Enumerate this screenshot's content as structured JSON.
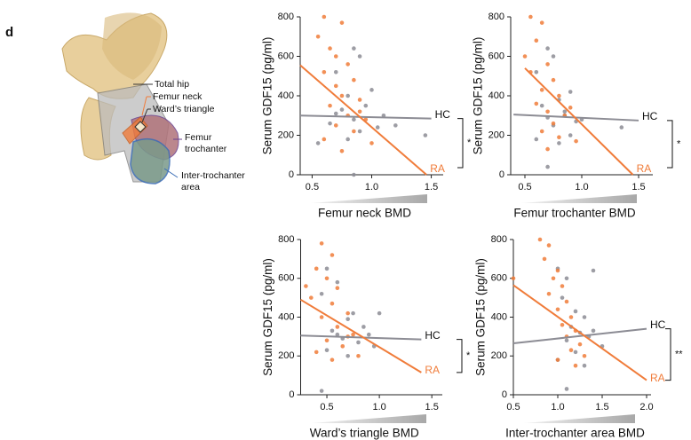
{
  "panel_label": "d",
  "illustration": {
    "total_hip": "Total hip",
    "femur_neck": "Femur neck",
    "wards_triangle": "Ward’s triangle",
    "femur_trochanter": [
      "Femur",
      "trochanter"
    ],
    "inter_trochanter": [
      "Inter-trochanter",
      "area"
    ]
  },
  "chart_data": [
    {
      "type": "scatter",
      "ylabel": "Serum GDF15 (pg/ml)",
      "xlabel": "Femur neck BMD",
      "significance": "*",
      "xlim": [
        0.4,
        1.6
      ],
      "xticks": [
        0.5,
        {
          "value": 1,
          "label": "1.0"
        },
        1.5
      ],
      "ylim": [
        0,
        800
      ],
      "yticks": [
        0,
        200,
        400,
        600,
        800
      ],
      "series": [
        {
          "name": "HC",
          "color": "#8c8c94",
          "x": [
            0.85,
            0.9,
            0.7,
            1.0,
            0.8,
            0.95,
            0.75,
            1.1,
            0.85,
            0.65,
            1.05,
            0.9,
            0.8,
            0.55,
            1.2,
            0.85,
            1.45,
            0.7
          ],
          "values": [
            640,
            600,
            520,
            430,
            400,
            350,
            330,
            300,
            280,
            260,
            240,
            220,
            180,
            160,
            250,
            0,
            200,
            310
          ]
        },
        {
          "name": "RA",
          "color": "#f07c3a",
          "x": [
            0.6,
            0.75,
            0.55,
            0.65,
            0.7,
            0.8,
            0.6,
            0.85,
            0.7,
            0.75,
            0.9,
            0.65,
            0.8,
            0.95,
            0.7,
            0.85,
            0.6,
            1.0,
            0.75,
            0.9
          ],
          "values": [
            800,
            770,
            700,
            640,
            600,
            560,
            520,
            480,
            450,
            400,
            380,
            350,
            300,
            280,
            250,
            220,
            180,
            160,
            120,
            320
          ]
        }
      ],
      "fit_lines": [
        {
          "x": [
            0.4,
            1.5
          ],
          "values": [
            300,
            285
          ]
        },
        {
          "x": [
            0.4,
            1.46
          ],
          "values": [
            555,
            0
          ]
        }
      ]
    },
    {
      "type": "scatter",
      "ylabel": "Serum GDF15 (pg/ml)",
      "xlabel": "Femur trochanter BMD",
      "significance": "*",
      "xlim": [
        0.375,
        1.625
      ],
      "xticks": [
        0.5,
        {
          "value": 1,
          "label": "1.0"
        },
        1.5
      ],
      "ylim": [
        0,
        800
      ],
      "yticks": [
        0,
        200,
        400,
        600,
        800
      ],
      "series": [
        {
          "name": "HC",
          "color": "#8c8c94",
          "x": [
            0.7,
            0.75,
            0.6,
            0.9,
            0.8,
            0.65,
            0.85,
            0.7,
            0.95,
            0.75,
            0.6,
            0.9,
            0.8,
            0.7,
            1.35,
            0.85,
            1.0
          ],
          "values": [
            640,
            600,
            520,
            420,
            380,
            350,
            320,
            290,
            270,
            250,
            180,
            200,
            160,
            40,
            240,
            300,
            280
          ]
        },
        {
          "name": "RA",
          "color": "#f07c3a",
          "x": [
            0.55,
            0.65,
            0.6,
            0.5,
            0.7,
            0.55,
            0.75,
            0.65,
            0.8,
            0.6,
            0.7,
            0.85,
            0.75,
            0.65,
            0.8,
            0.95,
            0.7,
            0.9
          ],
          "values": [
            800,
            770,
            680,
            600,
            560,
            520,
            480,
            430,
            400,
            360,
            320,
            300,
            260,
            220,
            190,
            170,
            130,
            340
          ]
        }
      ],
      "fit_lines": [
        {
          "x": [
            0.4,
            1.5
          ],
          "values": [
            305,
            275
          ]
        },
        {
          "x": [
            0.5,
            1.45
          ],
          "values": [
            540,
            0
          ]
        }
      ]
    },
    {
      "type": "scatter",
      "ylabel": "Serum GDF15 (pg/ml)",
      "xlabel": "Ward’s triangle BMD",
      "significance": "*",
      "xlim": [
        0.25,
        1.6
      ],
      "xticks": [
        0.5,
        {
          "value": 1,
          "label": "1.0"
        },
        1.5
      ],
      "ylim": [
        0,
        800
      ],
      "yticks": [
        0,
        200,
        400,
        600,
        800
      ],
      "series": [
        {
          "name": "HC",
          "color": "#8c8c94",
          "x": [
            0.5,
            0.6,
            0.45,
            0.75,
            0.7,
            0.85,
            0.55,
            0.9,
            0.65,
            0.8,
            0.5,
            0.95,
            0.7,
            0.45,
            1.0,
            0.6
          ],
          "values": [
            650,
            580,
            520,
            420,
            390,
            350,
            330,
            310,
            290,
            270,
            230,
            250,
            200,
            20,
            420,
            310
          ]
        },
        {
          "name": "RA",
          "color": "#f07c3a",
          "x": [
            0.45,
            0.55,
            0.4,
            0.5,
            0.6,
            0.35,
            0.55,
            0.7,
            0.45,
            0.6,
            0.75,
            0.5,
            0.65,
            0.4,
            0.8,
            0.55,
            0.7,
            0.3
          ],
          "values": [
            780,
            720,
            650,
            600,
            550,
            500,
            470,
            420,
            400,
            350,
            310,
            280,
            250,
            220,
            200,
            180,
            300,
            560
          ]
        }
      ],
      "fit_lines": [
        {
          "x": [
            0.25,
            1.4
          ],
          "values": [
            305,
            285
          ]
        },
        {
          "x": [
            0.25,
            1.4
          ],
          "values": [
            490,
            115
          ]
        }
      ]
    },
    {
      "type": "scatter",
      "ylabel": "Serum GDF15 (pg/ml)",
      "xlabel": "Inter-trochanter area BMD",
      "significance": "**",
      "xlim": [
        0.5,
        2.05
      ],
      "xticks": [
        0.5,
        {
          "value": 1,
          "label": "1.0"
        },
        1.5,
        {
          "value": 2,
          "label": "2.0"
        }
      ],
      "ylim": [
        0,
        800
      ],
      "yticks": [
        0,
        200,
        400,
        600,
        800
      ],
      "series": [
        {
          "name": "HC",
          "color": "#8c8c94",
          "x": [
            1.0,
            1.1,
            1.4,
            1.05,
            1.2,
            1.3,
            1.15,
            1.25,
            1.35,
            1.1,
            1.5,
            1.2,
            1.0,
            1.3,
            1.1,
            1.4
          ],
          "values": [
            650,
            600,
            640,
            500,
            430,
            400,
            350,
            320,
            300,
            280,
            250,
            220,
            180,
            150,
            30,
            330
          ]
        },
        {
          "name": "RA",
          "color": "#f07c3a",
          "x": [
            0.8,
            0.9,
            0.85,
            1.0,
            0.95,
            1.05,
            0.9,
            1.1,
            1.0,
            1.15,
            1.05,
            1.2,
            1.1,
            1.25,
            1.15,
            1.3,
            1.0,
            1.2,
            0.5
          ],
          "values": [
            800,
            770,
            700,
            640,
            600,
            560,
            520,
            480,
            440,
            400,
            360,
            330,
            300,
            260,
            230,
            200,
            180,
            150,
            600
          ]
        }
      ],
      "fit_lines": [
        {
          "x": [
            0.5,
            2.0
          ],
          "values": [
            265,
            340
          ]
        },
        {
          "x": [
            0.5,
            2.0
          ],
          "values": [
            565,
            75
          ]
        }
      ]
    }
  ]
}
